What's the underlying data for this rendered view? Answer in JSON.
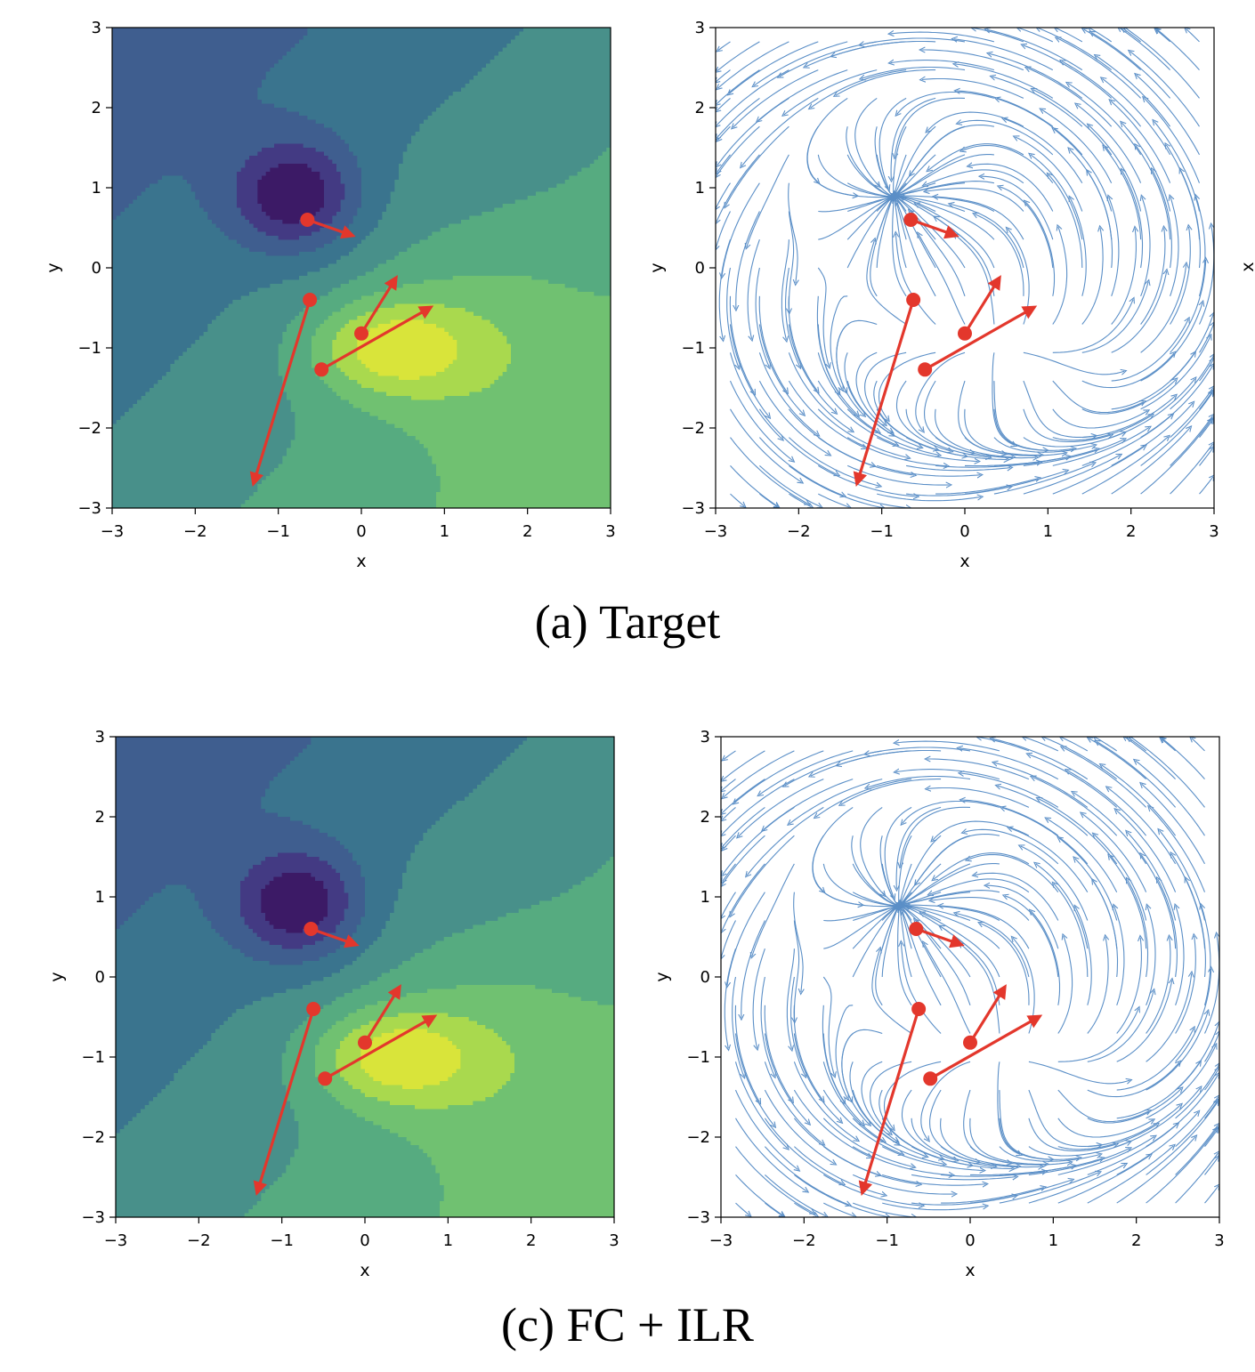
{
  "captions": {
    "top": "(a) Target",
    "bottom": "(c) FC + ILR"
  },
  "stray_mark": "x",
  "colors": {
    "contour_levels": [
      "#3c1a66",
      "#433a83",
      "#3f5e8f",
      "#3a748e",
      "#48908a",
      "#56ab80",
      "#70c171",
      "#a9d94e",
      "#d9e43a"
    ],
    "stream": "#5b8fc7",
    "arrow": "#e3372c"
  },
  "chart_data": [
    {
      "type": "contour",
      "panel": "top-left",
      "title": "",
      "xlabel": "x",
      "ylabel": "y",
      "xlim": [
        -3,
        3
      ],
      "ylim": [
        -3,
        3
      ],
      "xticks": [
        "−3",
        "−2",
        "−1",
        "0",
        "1",
        "2",
        "3"
      ],
      "yticks": [
        "−3",
        "−2",
        "−1",
        "0",
        "1",
        "2",
        "3"
      ],
      "minimum": {
        "x": -0.8,
        "y": 0.9
      },
      "maximum": {
        "x": 0.3,
        "y": -1.0
      },
      "points": [
        {
          "x": -0.65,
          "y": 0.6,
          "dx": 0.55,
          "dy": -0.2
        },
        {
          "x": -0.62,
          "y": -0.4,
          "dx": -0.68,
          "dy": -2.3
        },
        {
          "x": 0.0,
          "y": -0.82,
          "dx": 0.42,
          "dy": 0.7
        },
        {
          "x": -0.48,
          "y": -1.27,
          "dx": 1.32,
          "dy": 0.78
        }
      ]
    },
    {
      "type": "streamplot",
      "panel": "top-right",
      "title": "",
      "xlabel": "x",
      "ylabel": "y",
      "xlim": [
        -3,
        3
      ],
      "ylim": [
        -3,
        3
      ],
      "xticks": [
        "−3",
        "−2",
        "−1",
        "0",
        "1",
        "2",
        "3"
      ],
      "yticks": [
        "−3",
        "−2",
        "−1",
        "0",
        "1",
        "2",
        "3"
      ],
      "points": [
        {
          "x": -0.65,
          "y": 0.6,
          "dx": 0.55,
          "dy": -0.2
        },
        {
          "x": -0.62,
          "y": -0.4,
          "dx": -0.68,
          "dy": -2.3
        },
        {
          "x": 0.0,
          "y": -0.82,
          "dx": 0.42,
          "dy": 0.7
        },
        {
          "x": -0.48,
          "y": -1.27,
          "dx": 1.32,
          "dy": 0.78
        }
      ]
    },
    {
      "type": "contour",
      "panel": "bottom-left",
      "title": "",
      "xlabel": "x",
      "ylabel": "y",
      "xlim": [
        -3,
        3
      ],
      "ylim": [
        -3,
        3
      ],
      "xticks": [
        "−3",
        "−2",
        "−1",
        "0",
        "1",
        "2",
        "3"
      ],
      "yticks": [
        "−3",
        "−2",
        "−1",
        "0",
        "1",
        "2",
        "3"
      ],
      "minimum": {
        "x": -0.8,
        "y": 0.9
      },
      "maximum": {
        "x": 0.3,
        "y": -1.0
      },
      "points": [
        {
          "x": -0.65,
          "y": 0.6,
          "dx": 0.55,
          "dy": -0.2
        },
        {
          "x": -0.62,
          "y": -0.4,
          "dx": -0.68,
          "dy": -2.3
        },
        {
          "x": 0.0,
          "y": -0.82,
          "dx": 0.42,
          "dy": 0.7
        },
        {
          "x": -0.48,
          "y": -1.27,
          "dx": 1.32,
          "dy": 0.78
        }
      ]
    },
    {
      "type": "streamplot",
      "panel": "bottom-right",
      "title": "",
      "xlabel": "x",
      "ylabel": "y",
      "xlim": [
        -3,
        3
      ],
      "ylim": [
        -3,
        3
      ],
      "xticks": [
        "−3",
        "−2",
        "−1",
        "0",
        "1",
        "2",
        "3"
      ],
      "yticks": [
        "−3",
        "−2",
        "−1",
        "0",
        "1",
        "2",
        "3"
      ],
      "points": [
        {
          "x": -0.65,
          "y": 0.6,
          "dx": 0.55,
          "dy": -0.2
        },
        {
          "x": -0.62,
          "y": -0.4,
          "dx": -0.68,
          "dy": -2.3
        },
        {
          "x": 0.0,
          "y": -0.82,
          "dx": 0.42,
          "dy": 0.7
        },
        {
          "x": -0.48,
          "y": -1.27,
          "dx": 1.32,
          "dy": 0.78
        }
      ]
    }
  ]
}
